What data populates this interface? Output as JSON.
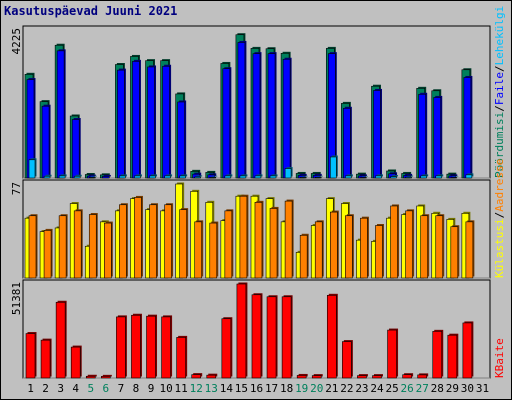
{
  "title": "Kasutuspäevad Juuni 2021",
  "colors": {
    "background": "#c0c0c0",
    "title": "#00007f",
    "grid": "#ffffff",
    "hits": "#00805c",
    "files": "#0000ff",
    "pages": "#00c0ff",
    "visits": "#ffff00",
    "sites": "#ff8000",
    "kbytes": "#ff0000",
    "weekend_label": "#00805c"
  },
  "chart_data": [
    {
      "type": "bar",
      "panel": "top",
      "y_max_label": "4225",
      "ylim": [
        0,
        4225
      ],
      "categories": [
        "1",
        "2",
        "3",
        "4",
        "5",
        "6",
        "7",
        "8",
        "9",
        "10",
        "11",
        "12",
        "13",
        "14",
        "15",
        "16",
        "17",
        "18",
        "19",
        "20",
        "21",
        "22",
        "23",
        "24",
        "25",
        "26",
        "27",
        "28",
        "29",
        "30",
        "31"
      ],
      "weekend_days": [
        "5",
        "6",
        "12",
        "13",
        "19",
        "20",
        "26",
        "27"
      ],
      "legend": [
        {
          "label": "Pöördumisi",
          "color": "#00805c"
        },
        {
          "label": "Faile",
          "color": "#0000ff"
        },
        {
          "label": "Lehekülgi",
          "color": "#00c0ff"
        }
      ],
      "series": [
        {
          "name": "Pöördumisi",
          "values": [
            2960,
            2180,
            3790,
            1770,
            100,
            90,
            3240,
            3470,
            3350,
            3350,
            2400,
            190,
            160,
            3270,
            4090,
            3700,
            3690,
            3560,
            130,
            130,
            3700,
            2130,
            110,
            2620,
            200,
            130,
            2560,
            2490,
            110,
            3090,
            0
          ]
        },
        {
          "name": "Faile",
          "values": [
            2810,
            2050,
            3630,
            1670,
            55,
            45,
            3080,
            3330,
            3170,
            3190,
            2170,
            110,
            90,
            3120,
            3870,
            3550,
            3550,
            3390,
            75,
            75,
            3550,
            1990,
            60,
            2500,
            120,
            75,
            2390,
            2300,
            60,
            2870,
            0
          ]
        },
        {
          "name": "Lehekülgi",
          "values": [
            520,
            50,
            60,
            50,
            20,
            10,
            60,
            60,
            60,
            60,
            60,
            30,
            20,
            60,
            60,
            60,
            60,
            270,
            20,
            20,
            600,
            60,
            15,
            60,
            40,
            25,
            60,
            60,
            15,
            90,
            0
          ]
        }
      ]
    },
    {
      "type": "bar",
      "panel": "middle",
      "y_max_label": "77",
      "ylim": [
        0,
        77
      ],
      "legend": [
        {
          "label": "Külastusi",
          "color": "#ffff00"
        },
        {
          "label": "Aadresse",
          "color": "#ff8000"
        }
      ],
      "series": [
        {
          "name": "Külastusi",
          "values": [
            49,
            38,
            41,
            61,
            26,
            46,
            55,
            65,
            56,
            55,
            77,
            71,
            62,
            47,
            67,
            67,
            65,
            46,
            21,
            43,
            65,
            61,
            31,
            30,
            49,
            52,
            59,
            53,
            48,
            53,
            0
          ]
        },
        {
          "name": "Aadresse",
          "values": [
            51,
            39,
            51,
            55,
            52,
            45,
            60,
            66,
            60,
            60,
            56,
            46,
            45,
            55,
            67,
            62,
            57,
            63,
            35,
            46,
            54,
            51,
            49,
            43,
            59,
            55,
            51,
            51,
            42,
            46,
            0
          ]
        }
      ]
    },
    {
      "type": "bar",
      "panel": "bottom",
      "y_max_label": "51381",
      "ylim": [
        0,
        51381
      ],
      "legend": [
        {
          "label": "KBaite",
          "color": "#ff0000"
        }
      ],
      "series": [
        {
          "name": "KBaite",
          "values": [
            24300,
            20700,
            41400,
            16900,
            950,
            900,
            33400,
            34300,
            33800,
            33400,
            22200,
            1850,
            1550,
            32400,
            51381,
            45500,
            44400,
            44400,
            1400,
            1300,
            45200,
            19900,
            1300,
            1300,
            26200,
            1800,
            1700,
            25500,
            23400,
            30100,
            0
          ]
        }
      ]
    }
  ]
}
